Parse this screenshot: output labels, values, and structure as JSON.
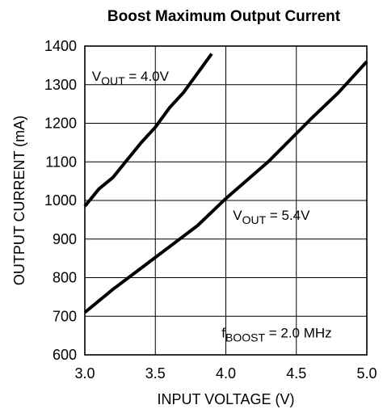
{
  "chart_data": {
    "type": "line",
    "title": "Boost Maximum Output Current",
    "xlabel": "INPUT VOLTAGE (V)",
    "ylabel": "OUTPUT CURRENT (mA)",
    "xlim": [
      3.0,
      5.0
    ],
    "ylim": [
      600,
      1400
    ],
    "x_ticks": [
      "3.0",
      "3.5",
      "4.0",
      "4.5",
      "5.0"
    ],
    "y_ticks": [
      "600",
      "700",
      "800",
      "900",
      "1000",
      "1100",
      "1200",
      "1300",
      "1400"
    ],
    "grid": true,
    "legend": "none",
    "line_color": "#000000",
    "series": [
      {
        "x": [
          3.0,
          3.1,
          3.2,
          3.3,
          3.4,
          3.5,
          3.6,
          3.7,
          3.8,
          3.9
        ],
        "values": [
          985,
          1030,
          1060,
          1105,
          1150,
          1190,
          1240,
          1280,
          1330,
          1380
        ]
      },
      {
        "x": [
          3.0,
          3.2,
          3.4,
          3.6,
          3.8,
          4.0,
          4.3,
          4.6,
          4.8,
          5.0
        ],
        "values": [
          710,
          770,
          825,
          880,
          935,
          1005,
          1100,
          1210,
          1280,
          1360
        ]
      }
    ],
    "annotations": [
      {
        "main": "V",
        "sub": "OUT",
        "rest": " = 4.0V",
        "x": 3.05,
        "y": 1310
      },
      {
        "main": "V",
        "sub": "OUT",
        "rest": " = 5.4V",
        "x": 4.05,
        "y": 950
      },
      {
        "main": "f",
        "sub": "BOOST",
        "rest": " = 2.0 MHz",
        "x": 3.97,
        "y": 645
      }
    ]
  }
}
